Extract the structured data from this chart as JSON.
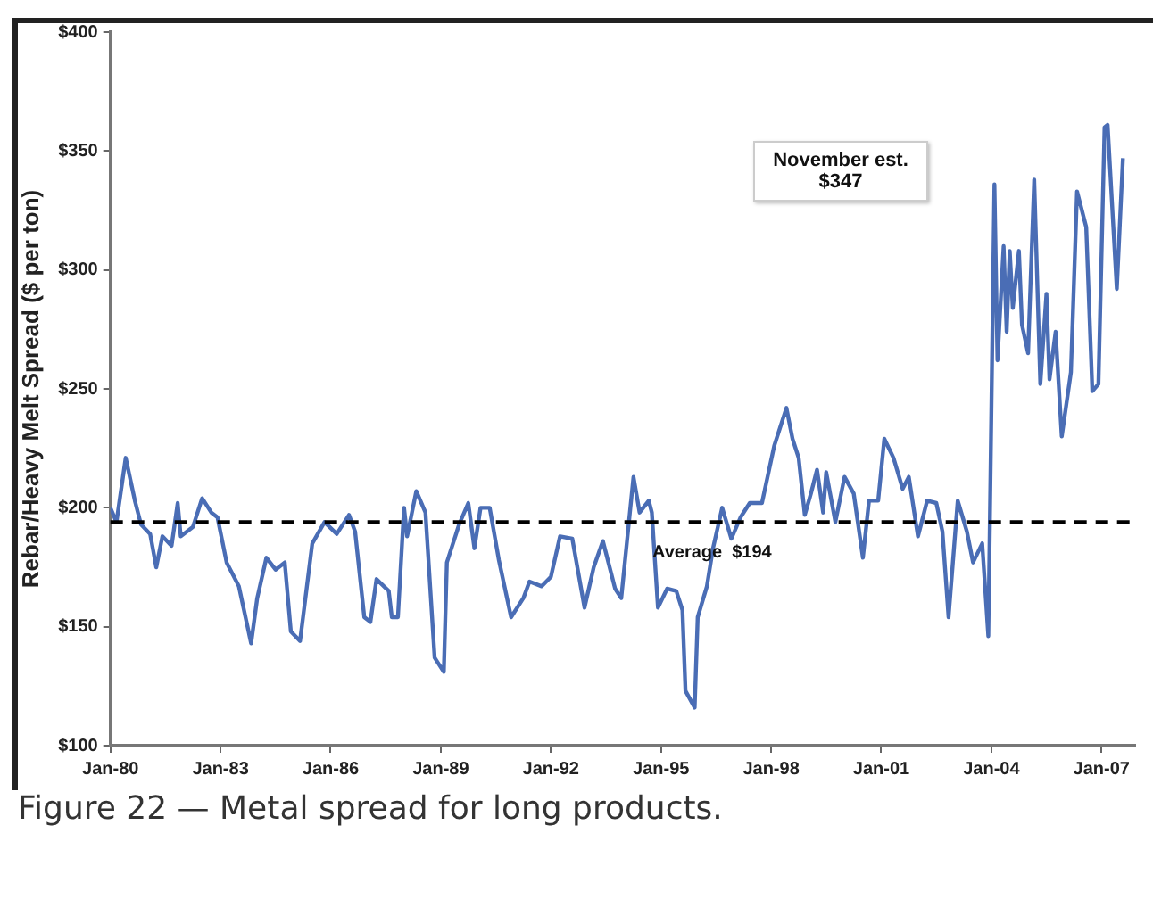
{
  "chart_data": {
    "type": "line",
    "ylabel": "Rebar/Heavy Melt Spread ($ per ton)",
    "xlim": [
      "1980-01",
      "2007-12"
    ],
    "xticks": [
      {
        "value": "1980-01",
        "label": "Jan-80"
      },
      {
        "value": "1983-01",
        "label": "Jan-83"
      },
      {
        "value": "1986-01",
        "label": "Jan-86"
      },
      {
        "value": "1989-01",
        "label": "Jan-89"
      },
      {
        "value": "1992-01",
        "label": "Jan-92"
      },
      {
        "value": "1995-01",
        "label": "Jan-95"
      },
      {
        "value": "1998-01",
        "label": "Jan-98"
      },
      {
        "value": "2001-01",
        "label": "Jan-01"
      },
      {
        "value": "2004-01",
        "label": "Jan-04"
      },
      {
        "value": "2007-01",
        "label": "Jan-07"
      }
    ],
    "ylim": [
      100,
      400
    ],
    "yticks": [
      {
        "value": 100,
        "label": "$100"
      },
      {
        "value": 150,
        "label": "$150"
      },
      {
        "value": 200,
        "label": "$200"
      },
      {
        "value": 250,
        "label": "$250"
      },
      {
        "value": 300,
        "label": "$300"
      },
      {
        "value": 350,
        "label": "$350"
      },
      {
        "value": 400,
        "label": "$400"
      }
    ],
    "grid": false,
    "legend": false,
    "marker": "none",
    "line_style": "solid",
    "series": [
      {
        "color": "#4a6db5",
        "x": [
          "1980-01",
          "1980-03",
          "1980-06",
          "1980-09",
          "1980-11",
          "1981-02",
          "1981-04",
          "1981-06",
          "1981-09",
          "1981-11",
          "1981-12",
          "1982-04",
          "1982-07",
          "1982-10",
          "1982-12",
          "1983-03",
          "1983-07",
          "1983-11",
          "1984-01",
          "1984-04",
          "1984-07",
          "1984-10",
          "1984-12",
          "1985-03",
          "1985-07",
          "1985-11",
          "1986-03",
          "1986-07",
          "1986-09",
          "1986-12",
          "1987-02",
          "1987-04",
          "1987-08",
          "1987-09",
          "1987-11",
          "1988-01",
          "1988-02",
          "1988-05",
          "1988-08",
          "1988-11",
          "1989-02",
          "1989-03",
          "1989-07",
          "1989-10",
          "1989-12",
          "1990-02",
          "1990-05",
          "1990-08",
          "1990-12",
          "1991-04",
          "1991-06",
          "1991-10",
          "1992-01",
          "1992-04",
          "1992-08",
          "1992-12",
          "1993-03",
          "1993-06",
          "1993-10",
          "1993-12",
          "1994-04",
          "1994-06",
          "1994-09",
          "1994-10",
          "1994-12",
          "1995-03",
          "1995-06",
          "1995-08",
          "1995-09",
          "1995-12",
          "1996-01",
          "1996-04",
          "1996-06",
          "1996-09",
          "1996-12",
          "1997-03",
          "1997-06",
          "1997-10",
          "1998-02",
          "1998-06",
          "1998-08",
          "1998-10",
          "1998-12",
          "1999-02",
          "1999-04",
          "1999-06",
          "1999-07",
          "1999-10",
          "2000-01",
          "2000-04",
          "2000-07",
          "2000-09",
          "2000-12",
          "2001-02",
          "2001-05",
          "2001-08",
          "2001-10",
          "2002-01",
          "2002-04",
          "2002-07",
          "2002-09",
          "2002-11",
          "2003-02",
          "2003-05",
          "2003-07",
          "2003-10",
          "2003-12",
          "2004-02",
          "2004-03",
          "2004-05",
          "2004-06",
          "2004-07",
          "2004-08",
          "2004-10",
          "2004-11",
          "2005-01",
          "2005-03",
          "2005-05",
          "2005-07",
          "2005-08",
          "2005-10",
          "2005-12",
          "2006-03",
          "2006-05",
          "2006-08",
          "2006-10",
          "2006-12",
          "2007-02",
          "2007-03",
          "2007-06",
          "2007-08"
        ],
        "values": [
          200,
          194,
          221,
          203,
          193,
          189,
          175,
          188,
          184,
          202,
          188,
          192,
          204,
          198,
          196,
          177,
          167,
          143,
          162,
          179,
          174,
          177,
          148,
          144,
          185,
          194,
          189,
          197,
          190,
          154,
          152,
          170,
          165,
          154,
          154,
          200,
          188,
          207,
          198,
          137,
          131,
          177,
          193,
          202,
          183,
          200,
          200,
          178,
          154,
          162,
          169,
          167,
          171,
          188,
          187,
          158,
          175,
          186,
          166,
          162,
          213,
          198,
          203,
          198,
          158,
          166,
          165,
          157,
          123,
          116,
          154,
          167,
          183,
          200,
          187,
          196,
          202,
          202,
          226,
          242,
          229,
          221,
          197,
          206,
          216,
          198,
          215,
          194,
          213,
          206,
          179,
          203,
          203,
          229,
          221,
          208,
          213,
          188,
          203,
          202,
          190,
          154,
          203,
          190,
          177,
          185,
          146,
          336,
          262,
          310,
          274,
          308,
          284,
          308,
          277,
          265,
          338,
          252,
          290,
          254,
          274,
          230,
          257,
          333,
          318,
          249,
          252,
          360,
          361,
          292,
          347
        ]
      }
    ],
    "ref_lines": [
      {
        "axis": "y",
        "value": 194,
        "label": "Average  $194",
        "color": "#000000",
        "line_style": "dashed"
      }
    ],
    "annotations": [
      "November est. $347",
      "Figure 22 — Metal spread for long products."
    ]
  }
}
